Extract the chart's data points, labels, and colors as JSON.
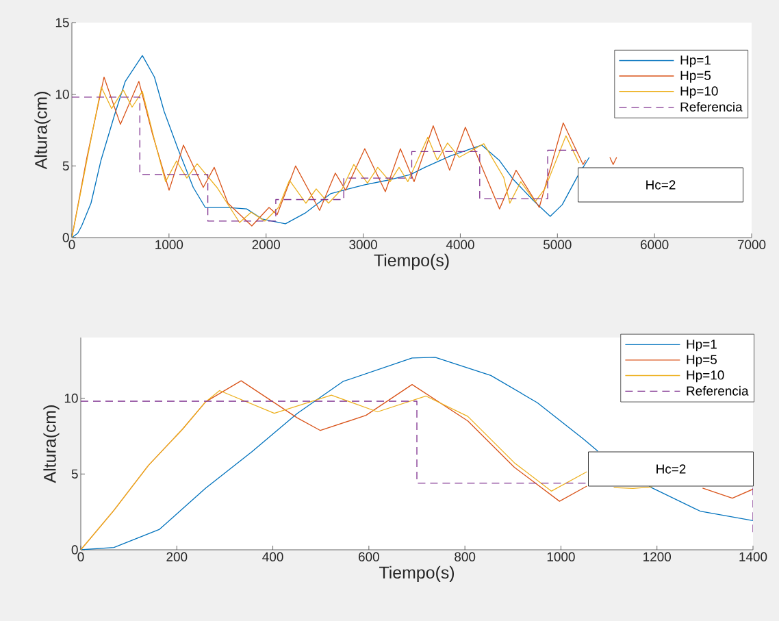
{
  "chart_data": [
    {
      "type": "line",
      "xlabel": "Tiempo(s)",
      "ylabel": "Altura(cm)",
      "xlim": [
        0,
        7000
      ],
      "ylim": [
        0,
        15
      ],
      "xticks": [
        0,
        1000,
        2000,
        3000,
        4000,
        5000,
        6000,
        7000
      ],
      "yticks": [
        0,
        5,
        10,
        15
      ],
      "legend": "top right",
      "line_style": "solid",
      "annotations": [
        "Hc=2"
      ],
      "series": [
        {
          "name": "Hp=1",
          "color": "#0072bd",
          "x": [
            0,
            60,
            100,
            197,
            300,
            437,
            550,
            726,
            850,
            950,
            1092,
            1250,
            1374,
            1607,
            1800,
            1959,
            2199,
            2400,
            2664,
            2850,
            3016,
            3250,
            3488,
            3636,
            3900,
            4221,
            4400,
            4545,
            4750,
            4926,
            5050,
            5201,
            5328
          ],
          "values": [
            0,
            0.3,
            0.8,
            2.4,
            5.4,
            8.5,
            10.9,
            12.7,
            11.2,
            8.8,
            6.2,
            3.5,
            2.1,
            2.1,
            2.0,
            1.3,
            0.96,
            1.7,
            3.06,
            3.4,
            3.68,
            4.0,
            4.4,
            4.9,
            5.7,
            6.45,
            5.4,
            4.06,
            2.6,
            1.48,
            2.3,
            4.2,
            5.6
          ]
        },
        {
          "name": "Hp=5",
          "color": "#d95319",
          "x": [
            0,
            155,
            331,
            500,
            690,
            831,
            1001,
            1149,
            1353,
            1466,
            1607,
            1853,
            2030,
            2114,
            2304,
            2551,
            2713,
            2819,
            3016,
            3228,
            3383,
            3524,
            3721,
            3890,
            4052,
            4193,
            4404,
            4574,
            4813,
            5060,
            5264,
            5290,
            5400,
            5540,
            5574,
            5610
          ],
          "values": [
            0,
            5.6,
            11.2,
            7.9,
            10.9,
            7.2,
            3.3,
            6.45,
            3.5,
            4.9,
            2.4,
            0.81,
            2.1,
            1.6,
            5.0,
            1.9,
            4.5,
            3.3,
            6.2,
            3.2,
            6.2,
            3.9,
            7.8,
            4.7,
            7.7,
            5.4,
            2.0,
            4.7,
            2.1,
            8.0,
            5.1,
            5.4,
            null,
            5.6,
            5.1,
            5.6
          ]
        },
        {
          "name": "Hp=10",
          "color": "#edb120",
          "x": [
            0,
            155,
            303,
            409,
            529,
            620,
            726,
            860,
            965,
            1078,
            1184,
            1290,
            1494,
            1727,
            1846,
            1987,
            2128,
            2241,
            2410,
            2516,
            2643,
            2784,
            2903,
            3044,
            3150,
            3277,
            3369,
            3460,
            3665,
            3763,
            3869,
            3989,
            4242,
            4447,
            4510,
            4623,
            4771,
            4870,
            5088,
            5222
          ],
          "values": [
            0,
            5.4,
            10.5,
            9.0,
            10.3,
            9.1,
            10.2,
            6.55,
            3.9,
            5.35,
            4.15,
            5.15,
            3.5,
            1.05,
            1.77,
            1.15,
            2.1,
            4.0,
            2.4,
            3.4,
            2.4,
            3.4,
            5.1,
            3.8,
            4.9,
            3.9,
            4.9,
            3.9,
            7.0,
            5.4,
            6.6,
            5.6,
            6.55,
            4.2,
            2.4,
            3.9,
            2.5,
            3.4,
            7.1,
            5.2
          ]
        },
        {
          "name": "Referencia",
          "color": "#7e2f8e",
          "line_style": "dashed",
          "x": [
            0,
            700,
            700,
            1400,
            1400,
            2100,
            2100,
            2800,
            2800,
            3500,
            3500,
            4200,
            4200,
            4900,
            4900,
            5200
          ],
          "values": [
            9.8,
            9.8,
            4.4,
            4.4,
            1.15,
            1.15,
            2.65,
            2.65,
            4.15,
            4.15,
            6.0,
            6.0,
            2.7,
            2.7,
            6.1,
            6.1
          ]
        }
      ]
    },
    {
      "type": "line",
      "xlabel": "Tiempo(s)",
      "ylabel": "Altura(cm)",
      "xlim": [
        0,
        1400
      ],
      "ylim": [
        0,
        14
      ],
      "xticks": [
        0,
        200,
        400,
        600,
        800,
        1000,
        1200,
        1400
      ],
      "yticks": [
        0,
        5,
        10
      ],
      "legend": "top right",
      "line_style": "solid",
      "annotations": [
        "Hc=2"
      ],
      "series": [
        {
          "name": "Hp=1",
          "color": "#0072bd",
          "x": [
            0,
            69,
            164,
            260,
            356,
            451,
            546,
            690,
            738,
            854,
            951,
            1047,
            1077,
            1120,
            1184,
            1290,
            1400
          ],
          "values": [
            0,
            0.15,
            1.35,
            4.06,
            6.46,
            9.0,
            11.1,
            12.65,
            12.7,
            11.5,
            9.7,
            7.3,
            6.5,
            null,
            4.17,
            2.55,
            1.92
          ]
        },
        {
          "name": "Hp=5",
          "color": "#d95319",
          "x": [
            0,
            69,
            141,
            212,
            260,
            334,
            451,
            499,
            594,
            690,
            806,
            903,
            997,
            1054,
            1150,
            1295,
            1357,
            1400
          ],
          "values": [
            0,
            2.6,
            5.57,
            7.96,
            9.76,
            11.15,
            8.7,
            7.87,
            8.87,
            10.9,
            8.5,
            5.44,
            3.2,
            4.2,
            null,
            4.07,
            3.4,
            4.0
          ]
        },
        {
          "name": "Hp=10",
          "color": "#edb120",
          "x": [
            0,
            69,
            141,
            212,
            260,
            289,
            403,
            522,
            618,
            719,
            806,
            903,
            980,
            1054,
            1080,
            1110,
            1150,
            1190
          ],
          "values": [
            0,
            2.6,
            5.57,
            7.96,
            9.76,
            10.5,
            9.0,
            10.2,
            9.1,
            10.14,
            8.8,
            5.74,
            3.87,
            5.15,
            null,
            4.1,
            4.05,
            4.15
          ]
        },
        {
          "name": "Referencia",
          "color": "#7e2f8e",
          "line_style": "dashed",
          "x": [
            0,
            700,
            700,
            1054,
            1200,
            1400,
            1400
          ],
          "values": [
            9.8,
            9.8,
            4.4,
            4.4,
            null,
            4.1,
            1.15
          ]
        }
      ]
    }
  ]
}
